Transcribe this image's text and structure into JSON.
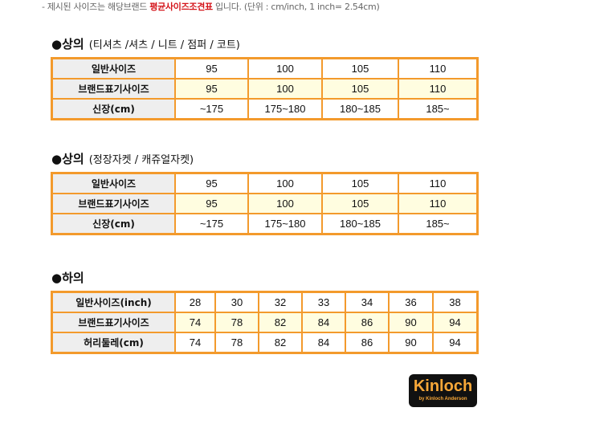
{
  "note": {
    "prefix": "- 제시된 사이즈는 해당브랜드 ",
    "highlight": "평균사이즈조견표",
    "suffix": " 입니다. (단위 : cm/inch, 1 inch= 2.54cm)"
  },
  "sections": [
    {
      "title": "●상의",
      "subtitle": "(티셔츠 /셔츠 / 니트 / 점퍼 / 코트)",
      "rows": [
        {
          "label": "일반사이즈",
          "values": [
            "95",
            "100",
            "105",
            "110"
          ]
        },
        {
          "label": "브랜드표기사이즈",
          "values": [
            "95",
            "100",
            "105",
            "110"
          ]
        },
        {
          "label": "신장(cm)",
          "values": [
            "~175",
            "175~180",
            "180~185",
            "185~"
          ]
        }
      ]
    },
    {
      "title": "●상의",
      "subtitle": "(정장자켓 / 캐쥬얼자켓)",
      "rows": [
        {
          "label": "일반사이즈",
          "values": [
            "95",
            "100",
            "105",
            "110"
          ]
        },
        {
          "label": "브랜드표기사이즈",
          "values": [
            "95",
            "100",
            "105",
            "110"
          ]
        },
        {
          "label": "신장(cm)",
          "values": [
            "~175",
            "175~180",
            "180~185",
            "185~"
          ]
        }
      ]
    },
    {
      "title": "●하의",
      "subtitle": "",
      "rows": [
        {
          "label": "일반사이즈(inch)",
          "values": [
            "28",
            "30",
            "32",
            "33",
            "34",
            "36",
            "38"
          ]
        },
        {
          "label": "브랜드표기사이즈",
          "values": [
            "74",
            "78",
            "82",
            "84",
            "86",
            "90",
            "94"
          ]
        },
        {
          "label": "허리둘레(cm)",
          "values": [
            "74",
            "78",
            "82",
            "84",
            "86",
            "90",
            "94"
          ]
        }
      ]
    }
  ],
  "logo": {
    "brand": "Kinloch",
    "tagline": "by Kinloch Anderson"
  },
  "colors": {
    "border": "#f39a2c",
    "highlight": "#d4141a",
    "brand_row": "#fffde0"
  }
}
